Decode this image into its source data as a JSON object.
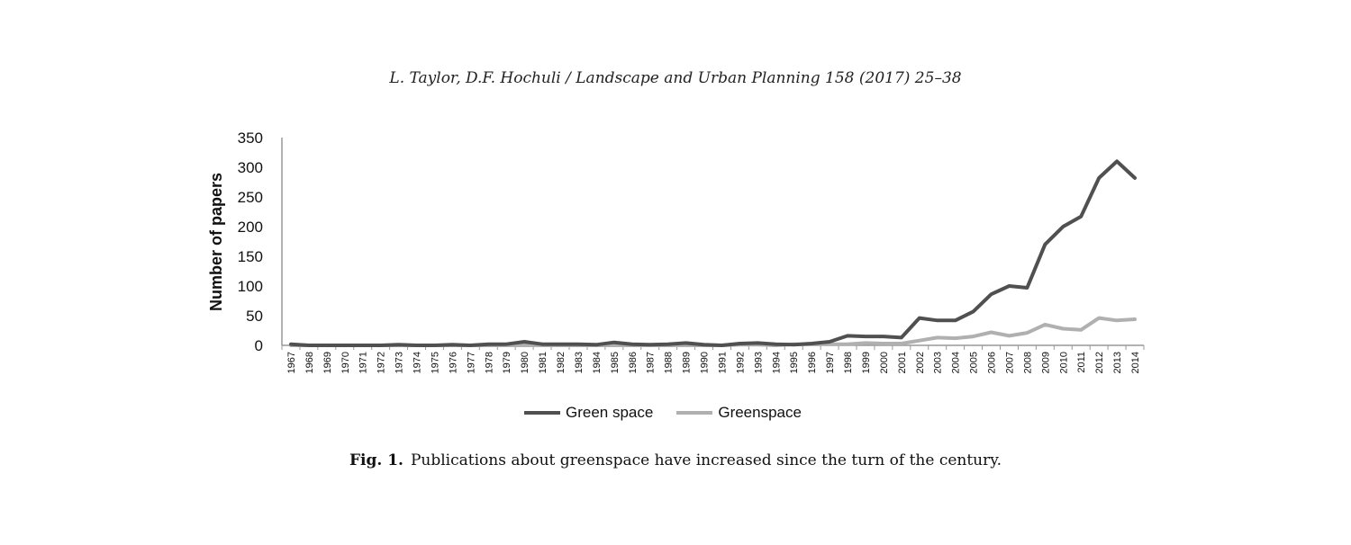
{
  "header": {
    "running_head": "L. Taylor, D.F. Hochuli / Landscape and Urban Planning 158 (2017) 25–38"
  },
  "caption": {
    "label": "Fig. 1.",
    "text": "Publications about greenspace have increased since the turn of the century."
  },
  "chart_data": {
    "type": "line",
    "ylabel": "Number of papers",
    "ylim": [
      0,
      350
    ],
    "yticks": [
      0,
      50,
      100,
      150,
      200,
      250,
      300,
      350
    ],
    "grid": false,
    "legend": "bottom",
    "x": [
      "1967",
      "1968",
      "1969",
      "1970",
      "1971",
      "1972",
      "1973",
      "1974",
      "1975",
      "1976",
      "1977",
      "1978",
      "1979",
      "1980",
      "1981",
      "1982",
      "1983",
      "1984",
      "1985",
      "1986",
      "1987",
      "1988",
      "1989",
      "1990",
      "1991",
      "1992",
      "1993",
      "1994",
      "1995",
      "1996",
      "1997",
      "1998",
      "1999",
      "2000",
      "2001",
      "2002",
      "2003",
      "2004",
      "2005",
      "2006",
      "2007",
      "2008",
      "2009",
      "2010",
      "2011",
      "2012",
      "2013",
      "2014"
    ],
    "series": [
      {
        "name": "Green space",
        "color": "#505050",
        "values": [
          2,
          0,
          0,
          0,
          0,
          0,
          1,
          0,
          0,
          1,
          0,
          2,
          2,
          6,
          2,
          2,
          2,
          1,
          5,
          2,
          1,
          2,
          4,
          1,
          0,
          3,
          4,
          2,
          1,
          3,
          6,
          16,
          15,
          15,
          13,
          46,
          42,
          42,
          57,
          86,
          100,
          97,
          170,
          200,
          217,
          282,
          310,
          282
        ]
      },
      {
        "name": "Greenspace",
        "color": "#b0b0b0",
        "values": [
          0,
          0,
          0,
          0,
          0,
          0,
          0,
          0,
          0,
          0,
          0,
          0,
          0,
          0,
          0,
          0,
          0,
          0,
          0,
          0,
          0,
          0,
          0,
          0,
          0,
          1,
          1,
          0,
          2,
          2,
          2,
          2,
          4,
          3,
          3,
          8,
          13,
          12,
          15,
          22,
          16,
          21,
          35,
          28,
          26,
          46,
          42,
          44
        ]
      }
    ]
  }
}
